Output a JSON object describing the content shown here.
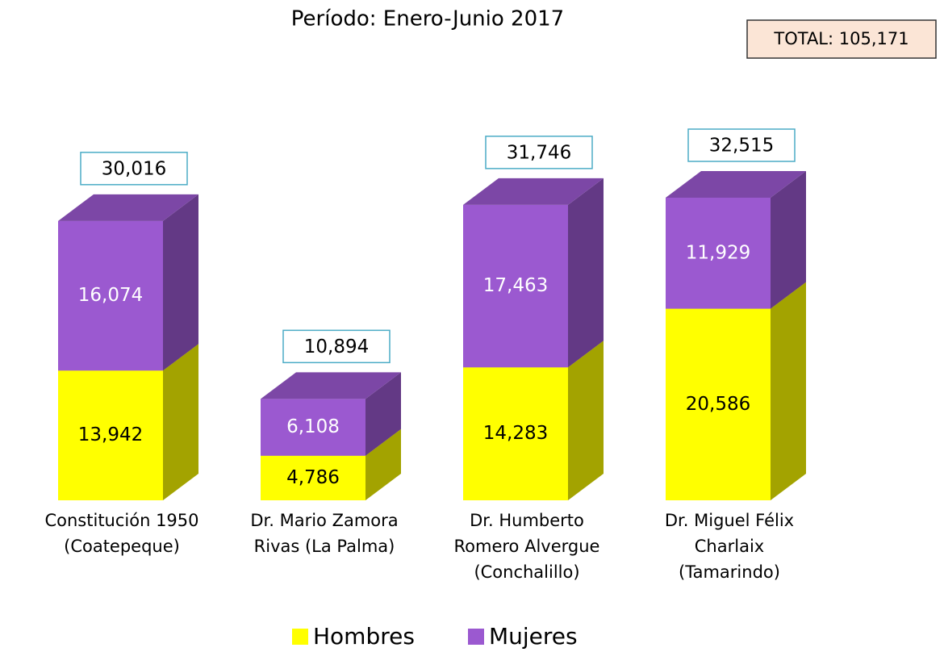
{
  "chart_data": {
    "type": "stacked_bar_3d",
    "title": "Período: Enero-Junio 2017",
    "annotation": "TOTAL: 105,171",
    "categories": [
      "Constitución 1950\n(Coatepeque)",
      "Dr. Mario Zamora\nRivas (La Palma)",
      "Dr. Humberto\nRomero Alvergue\n(Conchalillo)",
      "Dr. Miguel Félix\nCharlaix\n(Tamarindo)"
    ],
    "series": [
      {
        "name": "Hombres",
        "color": "#ffff00",
        "values": [
          13942,
          4786,
          14283,
          20586
        ],
        "value_labels": [
          "13,942",
          "4,786",
          "14,283",
          "20,586"
        ]
      },
      {
        "name": "Mujeres",
        "color": "#9b59d0",
        "values": [
          16074,
          6108,
          17463,
          11929
        ],
        "value_labels": [
          "16,074",
          "6,108",
          "17,463",
          "11,929"
        ]
      }
    ],
    "totals": [
      30016,
      10894,
      31746,
      32515
    ],
    "total_labels": [
      "30,016",
      "10,894",
      "31,746",
      "32,515"
    ]
  }
}
